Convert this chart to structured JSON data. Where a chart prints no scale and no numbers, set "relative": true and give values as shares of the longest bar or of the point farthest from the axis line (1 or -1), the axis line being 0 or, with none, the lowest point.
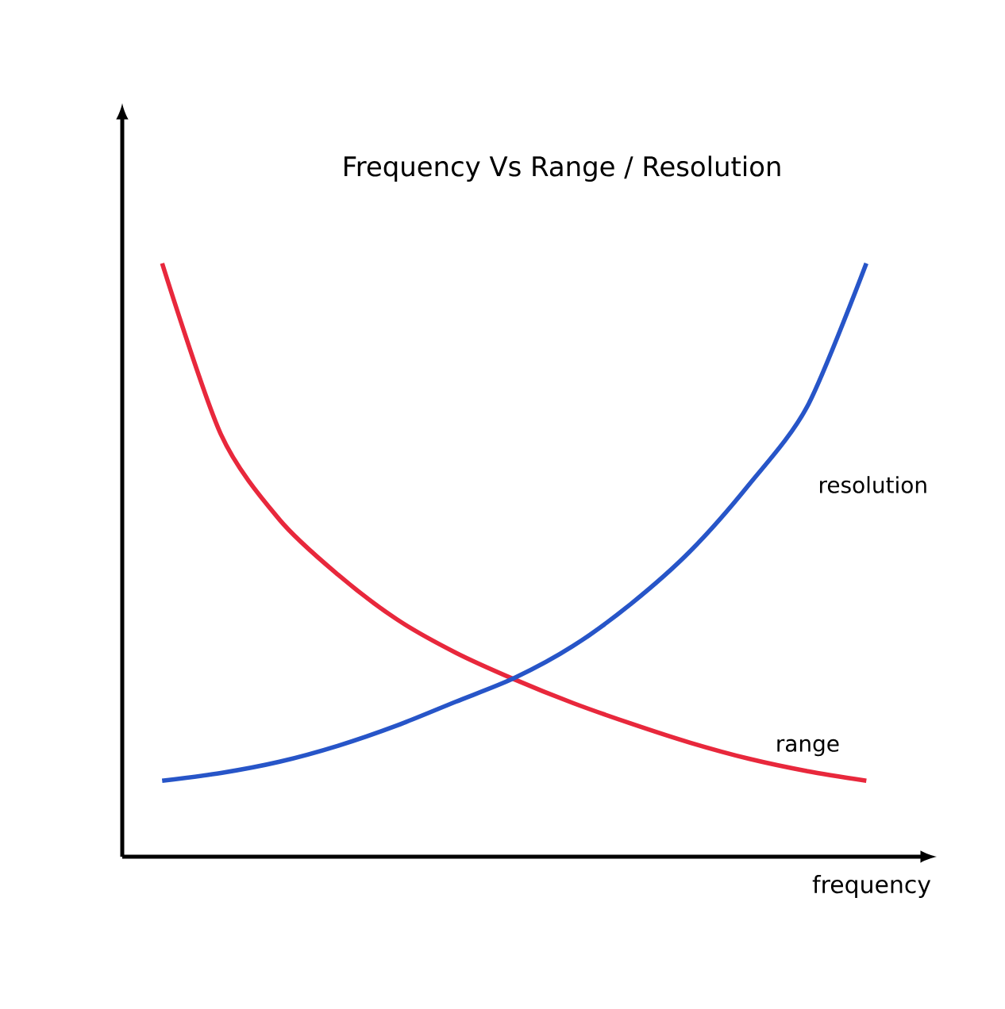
{
  "chart_data": {
    "type": "line",
    "title": "Frequency Vs Range / Resolution",
    "xlabel": "frequency",
    "relative": true,
    "categories": [
      null,
      null,
      null,
      null,
      null,
      null,
      null,
      null,
      null,
      null,
      null,
      null,
      null
    ],
    "series": [
      {
        "name": "range",
        "color": "#e8283c",
        "values": [
          1,
          0.712,
          0.568,
          0.475,
          0.4,
          0.344,
          0.299,
          0.259,
          0.224,
          0.192,
          0.165,
          0.144,
          0.128
        ]
      },
      {
        "name": "resolution",
        "color": "#2755c8",
        "values": [
          0.128,
          0.141,
          0.16,
          0.187,
          0.221,
          0.261,
          0.301,
          0.355,
          0.427,
          0.515,
          0.627,
          0.76,
          1
        ]
      }
    ]
  }
}
